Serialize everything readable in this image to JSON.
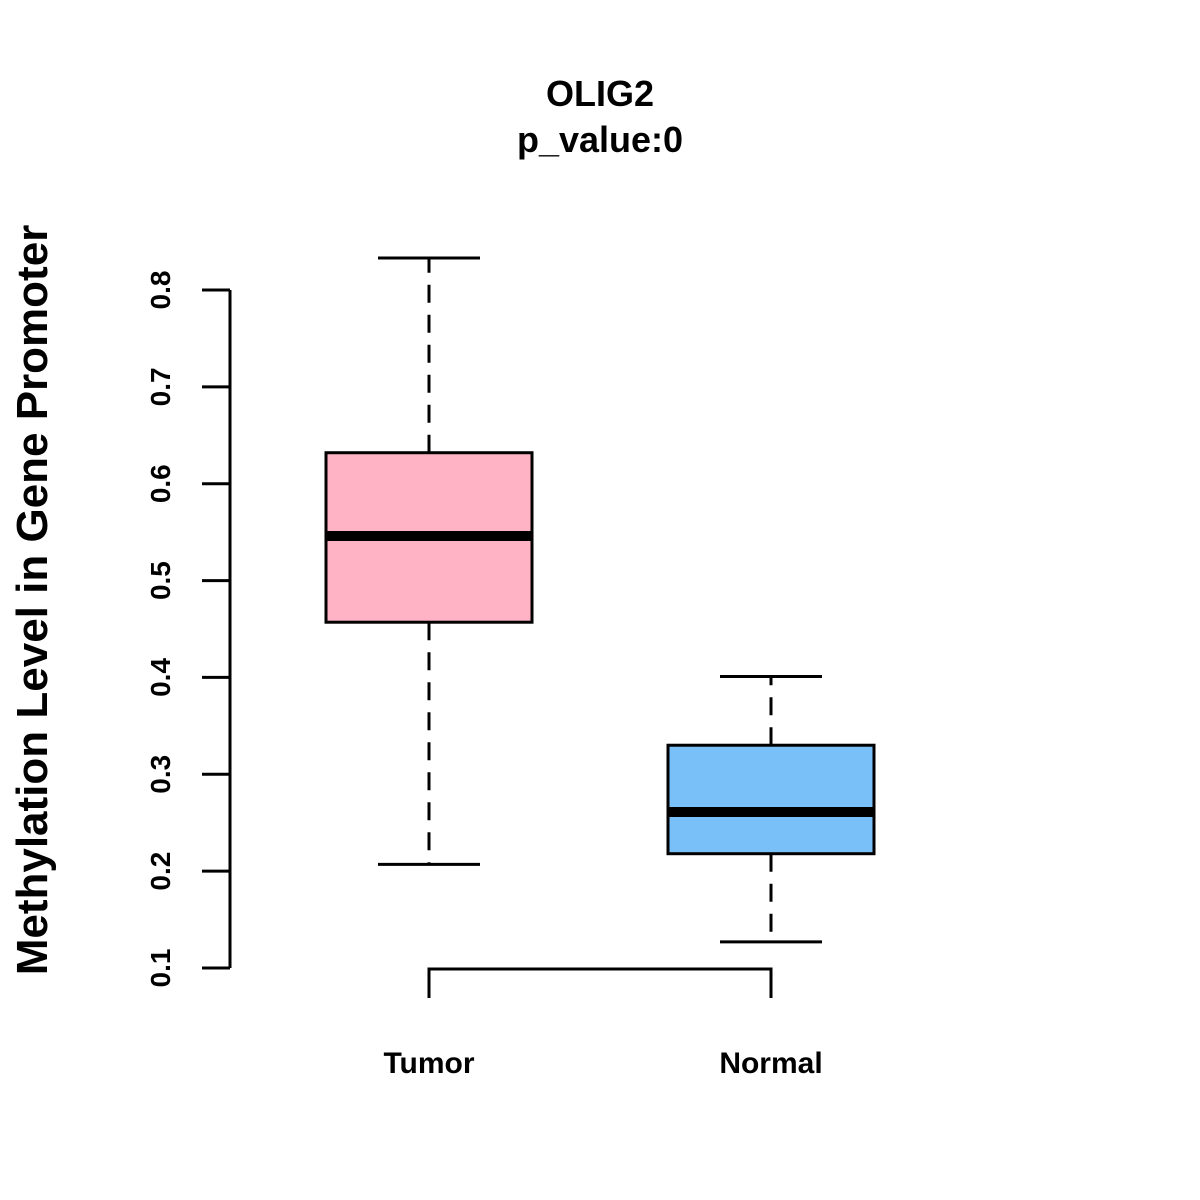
{
  "chart_data": {
    "type": "box",
    "title": "OLIG2",
    "subtitle": "p_value:0",
    "xlabel": "",
    "ylabel": "Methylation Level in Gene Promoter",
    "ylim": [
      0.1,
      0.8
    ],
    "yticks": [
      "0.1",
      "0.2",
      "0.3",
      "0.4",
      "0.5",
      "0.6",
      "0.7",
      "0.8"
    ],
    "categories": [
      "Tumor",
      "Normal"
    ],
    "boxes": [
      {
        "name": "Tumor",
        "whisker_low": 0.207,
        "q1": 0.457,
        "median": 0.546,
        "q3": 0.632,
        "whisker_high": 0.833,
        "color": "#FFB3C5"
      },
      {
        "name": "Normal",
        "whisker_low": 0.127,
        "q1": 0.218,
        "median": 0.261,
        "q3": 0.33,
        "whisker_high": 0.401,
        "color": "#79C0F8"
      }
    ],
    "comparison_bracket": true,
    "grid": false,
    "legend": "none"
  }
}
